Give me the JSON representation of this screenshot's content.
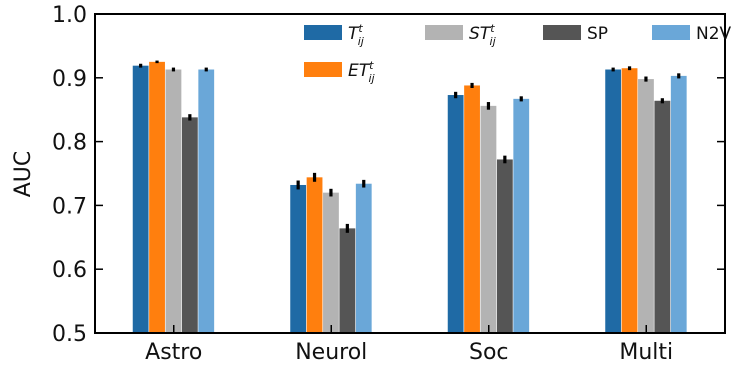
{
  "chart_data": {
    "type": "bar",
    "title": "",
    "xlabel": "",
    "ylabel": "AUC",
    "ylim": [
      0.5,
      1.0
    ],
    "yticks": [
      "0.5",
      "0.6",
      "0.7",
      "0.8",
      "0.9",
      "1.0"
    ],
    "grid": false,
    "legend_position": "top",
    "categories": [
      "Astro",
      "Neurol",
      "Soc",
      "Multi"
    ],
    "series": [
      {
        "name": "T",
        "name_sup": "t",
        "name_sub": "ij",
        "color": "#1f6aa5",
        "values": [
          0.919,
          0.732,
          0.873,
          0.913
        ],
        "errors": [
          0.003,
          0.007,
          0.005,
          0.003
        ]
      },
      {
        "name": "ET",
        "name_sup": "t",
        "name_sub": "ij",
        "color": "#ff7f0e",
        "values": [
          0.925,
          0.744,
          0.888,
          0.915
        ],
        "errors": [
          0.002,
          0.007,
          0.004,
          0.003
        ]
      },
      {
        "name": "ST",
        "name_sup": "t",
        "name_sub": "ij",
        "color": "#b3b3b3",
        "values": [
          0.913,
          0.72,
          0.856,
          0.898
        ],
        "errors": [
          0.003,
          0.006,
          0.006,
          0.004
        ]
      },
      {
        "name": "SP",
        "name_sup": "",
        "name_sub": "",
        "color": "#555555",
        "values": [
          0.838,
          0.664,
          0.772,
          0.864
        ],
        "errors": [
          0.005,
          0.007,
          0.006,
          0.004
        ]
      },
      {
        "name": "N2V",
        "name_sup": "",
        "name_sub": "",
        "color": "#6aa7d8",
        "values": [
          0.913,
          0.734,
          0.867,
          0.903
        ],
        "errors": [
          0.003,
          0.006,
          0.004,
          0.004
        ]
      }
    ]
  }
}
